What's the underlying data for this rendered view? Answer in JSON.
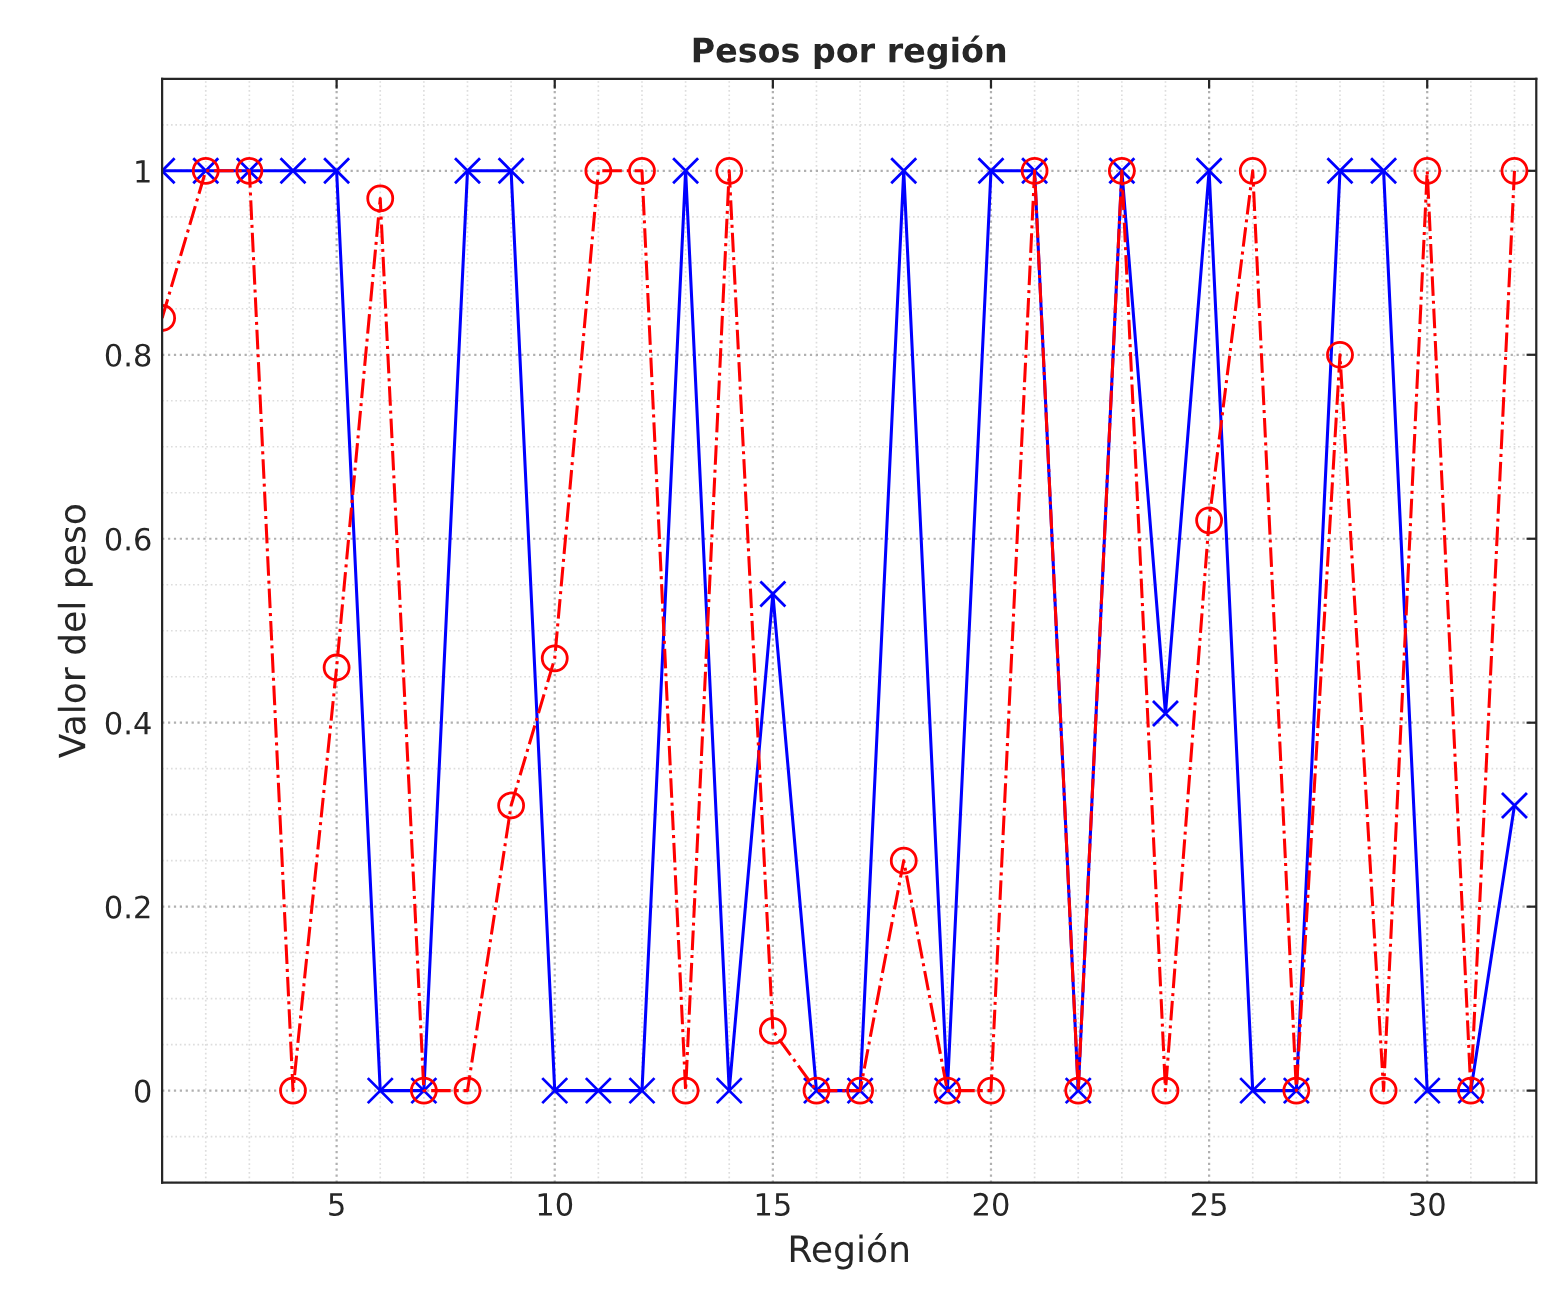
{
  "chart_data": {
    "type": "line",
    "title": "Pesos por región",
    "xlabel": "Región",
    "ylabel": "Valor del peso",
    "x": [
      1,
      2,
      3,
      4,
      5,
      6,
      7,
      8,
      9,
      10,
      11,
      12,
      13,
      14,
      15,
      16,
      17,
      18,
      19,
      20,
      21,
      22,
      23,
      24,
      25,
      26,
      27,
      28,
      29,
      30,
      31,
      32
    ],
    "series": [
      {
        "color": "#0000ff",
        "marker": "cross",
        "line_style": "solid",
        "values": [
          1,
          1,
          1,
          1,
          1,
          0,
          0,
          1,
          1,
          0,
          0,
          0,
          1,
          0,
          0.54,
          0,
          0,
          1,
          0,
          1,
          1,
          0,
          1,
          0.41,
          1,
          0,
          0,
          1,
          1,
          0,
          0,
          0.31
        ]
      },
      {
        "color": "#ff0000",
        "marker": "circle",
        "line_style": "dashdot",
        "values": [
          0.84,
          1,
          1,
          0,
          0.46,
          0.97,
          0,
          0,
          0.31,
          0.47,
          1,
          1,
          0,
          1,
          0.065,
          0,
          0,
          0.25,
          0,
          0,
          1,
          0,
          1,
          0,
          0.62,
          1,
          0,
          0.8,
          0,
          1,
          0,
          1
        ]
      }
    ],
    "xlim": [
      1,
      32.5
    ],
    "xticks": [
      5,
      10,
      15,
      20,
      25,
      30
    ],
    "ylim": [
      -0.1,
      1.1
    ],
    "yticks": [
      0,
      0.2,
      0.4,
      0.6,
      0.8,
      1
    ],
    "grid": true
  }
}
